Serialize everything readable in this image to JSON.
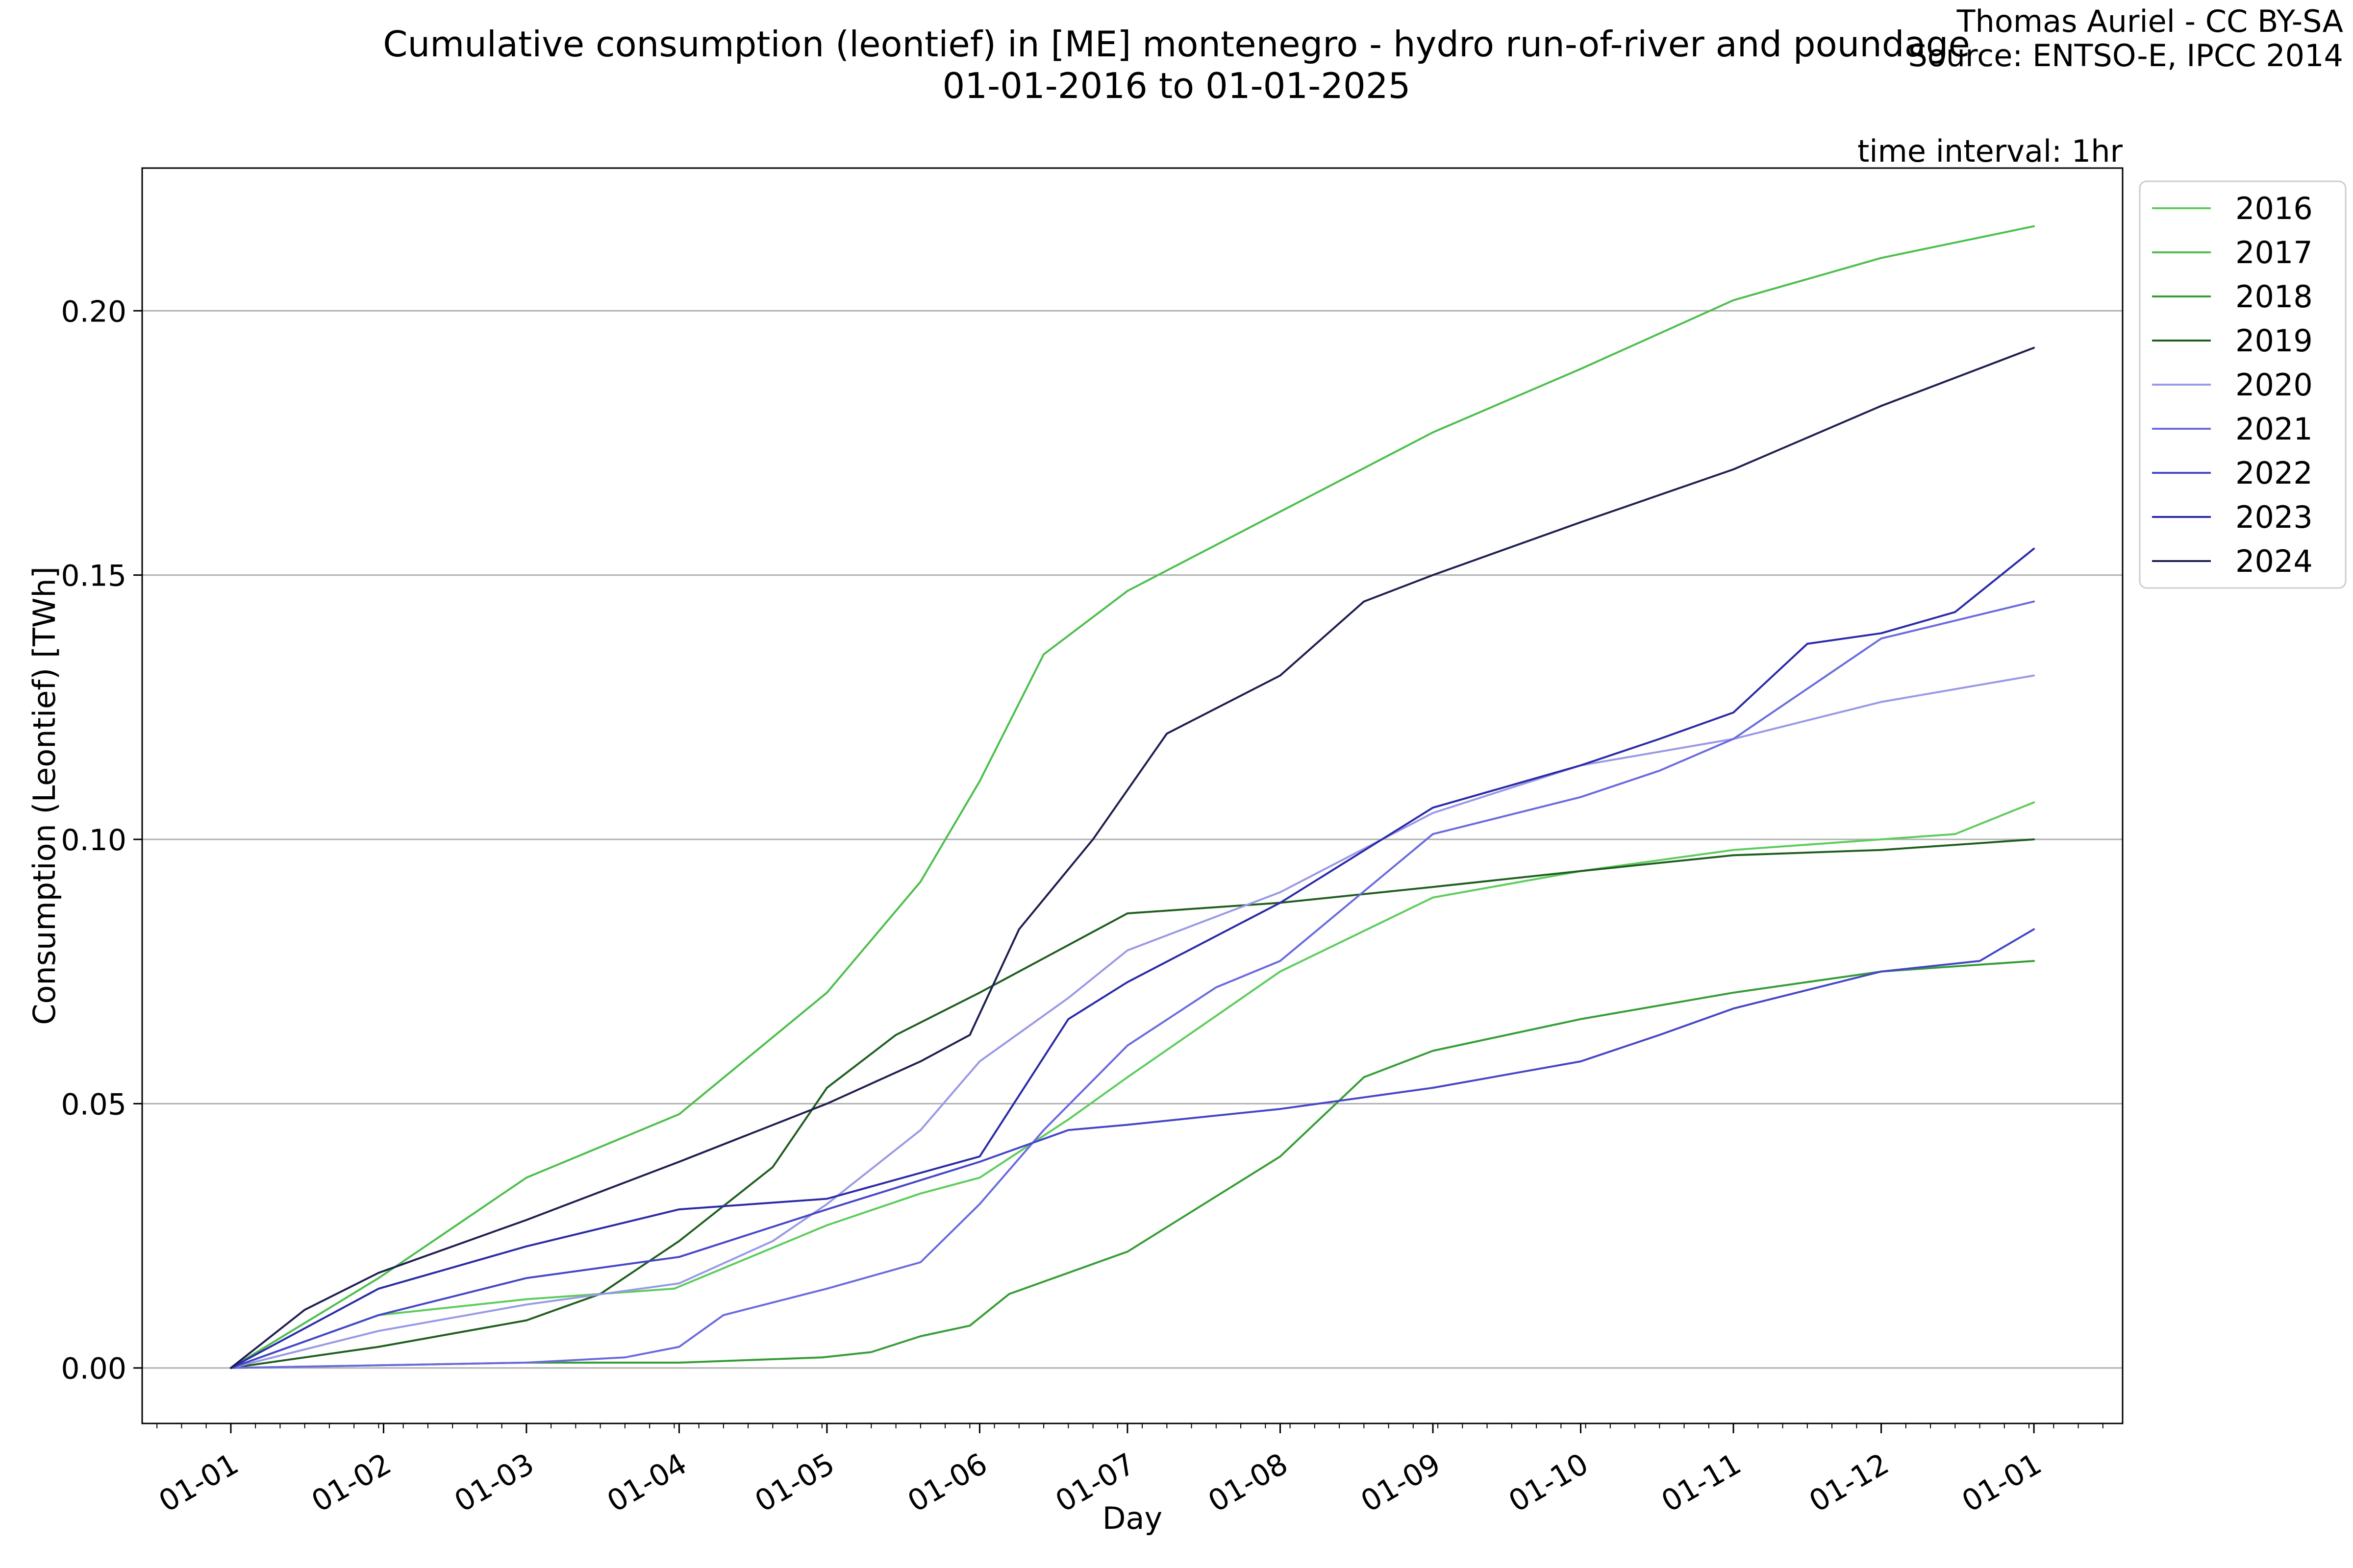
{
  "chart_data": {
    "type": "line",
    "title_line1": "Cumulative consumption (leontief) in [ME] montenegro - hydro run-of-river and poundage",
    "title_line2": "01-01-2016 to 01-01-2025",
    "credit_line1": "Thomas Auriel - CC BY-SA",
    "credit_line2": "Source: ENTSO-E, IPCC 2014",
    "interval_label": "time interval: 1hr",
    "xlabel": "Day",
    "ylabel": "Consumption (Leontief) [TWh]",
    "x_ticks": [
      "01-01",
      "01-02",
      "01-03",
      "01-04",
      "01-05",
      "01-06",
      "01-07",
      "01-08",
      "01-09",
      "01-10",
      "01-11",
      "01-12",
      "01-01"
    ],
    "x_tick_days": [
      0,
      31,
      60,
      91,
      121,
      152,
      182,
      213,
      244,
      274,
      305,
      335,
      366
    ],
    "xlim": [
      -18,
      384
    ],
    "ylim": [
      -0.0105,
      0.227
    ],
    "y_ticks": [
      0.0,
      0.05,
      0.1,
      0.15,
      0.2
    ],
    "y_tick_labels": [
      "0.00",
      "0.05",
      "0.10",
      "0.15",
      "0.20"
    ],
    "grid": "horizontal",
    "legend_position": "outside-right-top",
    "series": [
      {
        "name": "2016",
        "color": "#5ccc5c",
        "x": [
          0,
          30,
          60,
          90,
          121,
          140,
          152,
          170,
          182,
          213,
          244,
          274,
          305,
          335,
          350,
          366
        ],
        "y": [
          0,
          0.01,
          0.013,
          0.015,
          0.027,
          0.033,
          0.036,
          0.047,
          0.055,
          0.075,
          0.089,
          0.094,
          0.098,
          0.1,
          0.101,
          0.107
        ]
      },
      {
        "name": "2017",
        "color": "#4cbf4c",
        "x": [
          0,
          30,
          60,
          91,
          121,
          140,
          152,
          165,
          182,
          213,
          244,
          274,
          305,
          335,
          366
        ],
        "y": [
          0,
          0.017,
          0.036,
          0.048,
          0.071,
          0.092,
          0.111,
          0.135,
          0.147,
          0.162,
          0.177,
          0.189,
          0.202,
          0.21,
          0.216
        ]
      },
      {
        "name": "2018",
        "color": "#359d35",
        "x": [
          0,
          60,
          91,
          120,
          130,
          140,
          150,
          158,
          182,
          213,
          230,
          244,
          274,
          305,
          335,
          366
        ],
        "y": [
          0,
          0.001,
          0.001,
          0.002,
          0.003,
          0.006,
          0.008,
          0.014,
          0.022,
          0.04,
          0.055,
          0.06,
          0.066,
          0.071,
          0.075,
          0.077
        ]
      },
      {
        "name": "2019",
        "color": "#1f5e1f",
        "x": [
          0,
          30,
          60,
          75,
          91,
          110,
          121,
          135,
          152,
          170,
          182,
          213,
          244,
          274,
          305,
          335,
          366
        ],
        "y": [
          0,
          0.004,
          0.009,
          0.014,
          0.024,
          0.038,
          0.053,
          0.063,
          0.071,
          0.08,
          0.086,
          0.088,
          0.091,
          0.094,
          0.097,
          0.098,
          0.1
        ]
      },
      {
        "name": "2020",
        "color": "#9999e6",
        "x": [
          0,
          30,
          60,
          91,
          110,
          121,
          140,
          152,
          170,
          182,
          213,
          244,
          274,
          305,
          335,
          366
        ],
        "y": [
          0,
          0.007,
          0.012,
          0.016,
          0.024,
          0.031,
          0.045,
          0.058,
          0.07,
          0.079,
          0.09,
          0.105,
          0.114,
          0.119,
          0.126,
          0.131
        ]
      },
      {
        "name": "2021",
        "color": "#6a6ae0",
        "x": [
          0,
          60,
          80,
          91,
          100,
          121,
          140,
          152,
          165,
          182,
          200,
          213,
          244,
          274,
          290,
          305,
          335,
          366
        ],
        "y": [
          0,
          0.001,
          0.002,
          0.004,
          0.01,
          0.015,
          0.02,
          0.031,
          0.045,
          0.061,
          0.072,
          0.077,
          0.101,
          0.108,
          0.113,
          0.119,
          0.138,
          0.145
        ]
      },
      {
        "name": "2022",
        "color": "#4545c8",
        "x": [
          0,
          30,
          60,
          91,
          121,
          152,
          170,
          182,
          213,
          244,
          274,
          290,
          305,
          335,
          355,
          366
        ],
        "y": [
          0,
          0.01,
          0.017,
          0.021,
          0.03,
          0.039,
          0.045,
          0.046,
          0.049,
          0.053,
          0.058,
          0.063,
          0.068,
          0.075,
          0.077,
          0.083
        ]
      },
      {
        "name": "2023",
        "color": "#2a2aa8",
        "x": [
          0,
          30,
          60,
          91,
          121,
          152,
          170,
          182,
          213,
          244,
          274,
          290,
          305,
          320,
          335,
          350,
          366
        ],
        "y": [
          0,
          0.015,
          0.023,
          0.03,
          0.032,
          0.04,
          0.066,
          0.073,
          0.088,
          0.106,
          0.114,
          0.119,
          0.124,
          0.137,
          0.139,
          0.143,
          0.155
        ]
      },
      {
        "name": "2024",
        "color": "#1e1e50",
        "x": [
          0,
          15,
          30,
          60,
          91,
          121,
          140,
          150,
          160,
          175,
          190,
          213,
          230,
          244,
          274,
          305,
          335,
          366
        ],
        "y": [
          0,
          0.011,
          0.018,
          0.028,
          0.039,
          0.05,
          0.058,
          0.063,
          0.083,
          0.1,
          0.12,
          0.131,
          0.145,
          0.15,
          0.16,
          0.17,
          0.182,
          0.193
        ]
      }
    ]
  }
}
